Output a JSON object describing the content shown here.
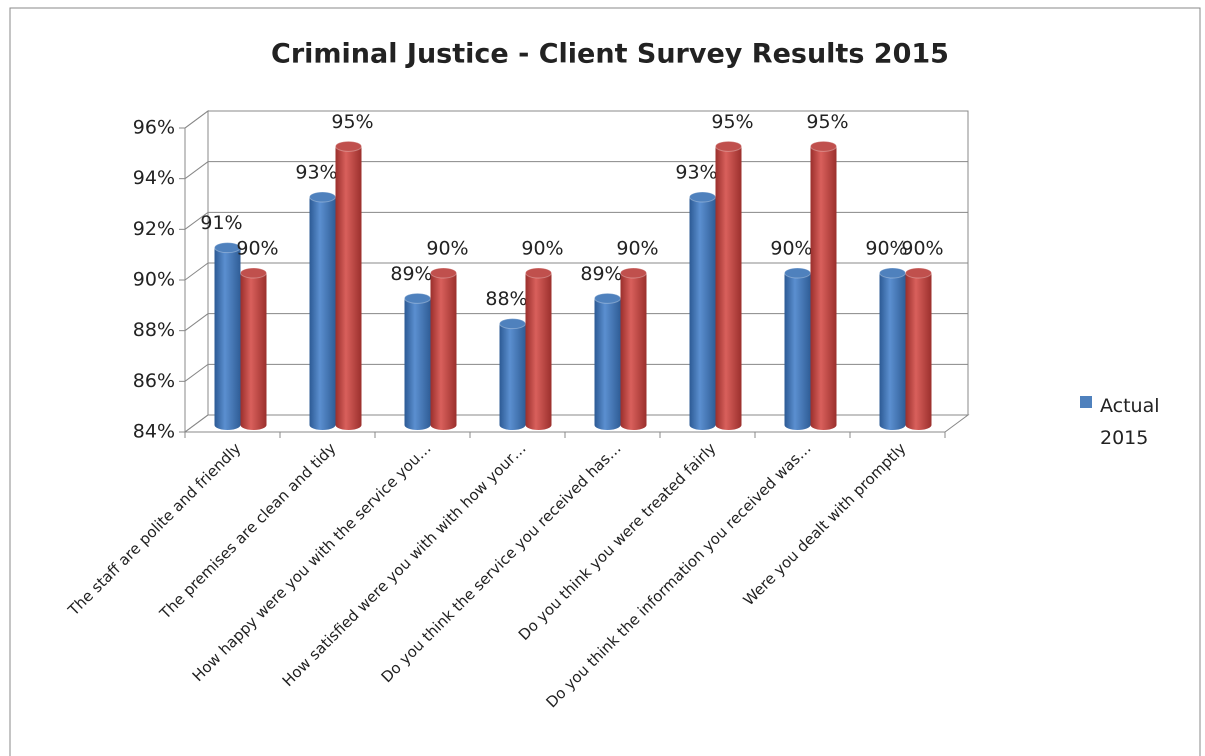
{
  "chart_data": {
    "type": "bar3d",
    "title": "Criminal Justice - Client Survey Results 2015",
    "categories": [
      "The staff are polite and friendly",
      "The premises are clean and tidy",
      "How happy were you with the service you…",
      "How satisfied were you with with how your…",
      "Do you think the service you received has…",
      "Do you think you were treated fairly",
      "Do you think the information you received was…",
      "Were you dealt with promptly"
    ],
    "series": [
      {
        "name": "Actual 2015",
        "color": "#4f81bd",
        "values": [
          91,
          93,
          89,
          88,
          89,
          93,
          90,
          90
        ],
        "value_labels": [
          "91%",
          "93%",
          "89%",
          "88%",
          "89%",
          "93%",
          "90%",
          "90%"
        ]
      },
      {
        "color": "#c0504d",
        "values": [
          90,
          95,
          90,
          90,
          90,
          95,
          95,
          90
        ],
        "value_labels": [
          "90%",
          "95%",
          "90%",
          "90%",
          "90%",
          "95%",
          "95%",
          "90%"
        ]
      }
    ],
    "ylim": [
      84,
      96
    ],
    "yticks": [
      {
        "value": 84,
        "label": "84%"
      },
      {
        "value": 86,
        "label": "86%"
      },
      {
        "value": 88,
        "label": "88%"
      },
      {
        "value": 90,
        "label": "90%"
      },
      {
        "value": 92,
        "label": "92%"
      },
      {
        "value": 94,
        "label": "94%"
      },
      {
        "value": 96,
        "label": "96%"
      }
    ],
    "grid": true,
    "legend": "right"
  }
}
